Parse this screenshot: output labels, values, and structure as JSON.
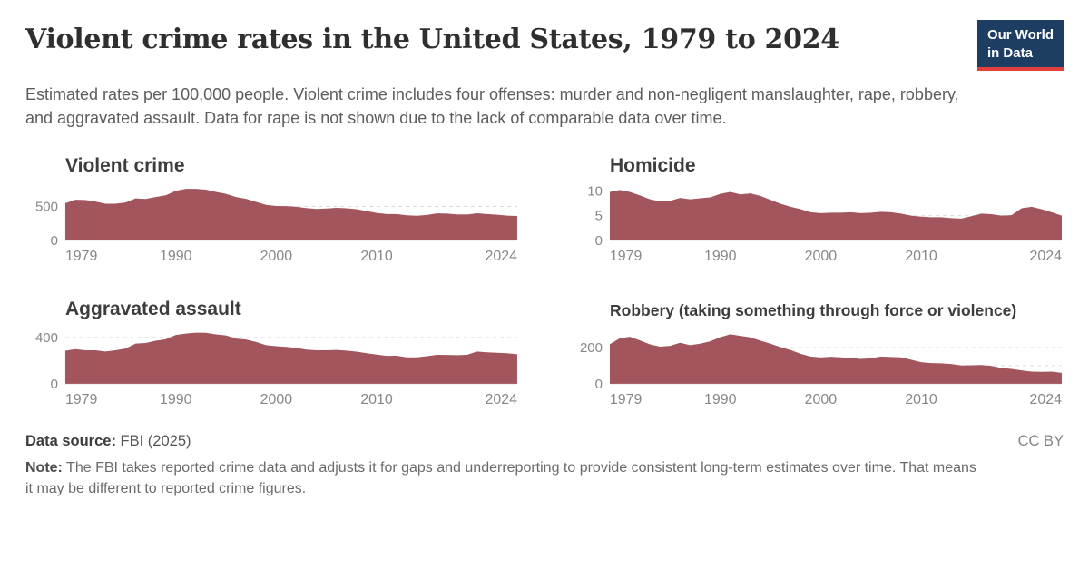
{
  "header": {
    "title": "Violent crime rates in the United States, 1979 to 2024",
    "subtitle": "Estimated rates per 100,000 people. Violent crime includes four offenses: murder and non-negligent manslaughter, rape, robbery, and aggravated assault. Data for rape is not shown due to the lack of comparable data over time.",
    "logo": {
      "line1": "Our World",
      "line2": "in Data",
      "bg": "#1d3d63",
      "accent": "#e0413b"
    }
  },
  "chart_data": {
    "type": "area",
    "fill_color": "#a2555c",
    "grid_color": "#dcdcdc",
    "x": [
      1979,
      1980,
      1981,
      1982,
      1983,
      1984,
      1985,
      1986,
      1987,
      1988,
      1989,
      1990,
      1991,
      1992,
      1993,
      1994,
      1995,
      1996,
      1997,
      1998,
      1999,
      2000,
      2001,
      2002,
      2003,
      2004,
      2005,
      2006,
      2007,
      2008,
      2009,
      2010,
      2011,
      2012,
      2013,
      2014,
      2015,
      2016,
      2017,
      2018,
      2019,
      2020,
      2021,
      2022,
      2023,
      2024
    ],
    "xticks": [
      1979,
      1990,
      2000,
      2010,
      2024
    ],
    "charts": [
      {
        "title": "Violent crime",
        "ymax": 800,
        "yticks": [
          0,
          500
        ],
        "grid": [
          500
        ],
        "values": [
          548,
          597,
          594,
          571,
          538,
          539,
          557,
          618,
          610,
          637,
          663,
          730,
          758,
          758,
          747,
          714,
          685,
          637,
          611,
          567,
          523,
          507,
          504,
          494,
          476,
          463,
          469,
          479,
          472,
          458,
          431,
          404,
          387,
          388,
          370,
          362,
          373,
          397,
          394,
          383,
          380,
          399,
          387,
          377,
          364,
          359
        ]
      },
      {
        "title": "Homicide",
        "ymax": 11,
        "yticks": [
          0,
          5,
          10
        ],
        "grid": [
          5,
          10
        ],
        "values": [
          9.8,
          10.2,
          9.8,
          9.1,
          8.3,
          7.9,
          8.0,
          8.6,
          8.3,
          8.5,
          8.7,
          9.4,
          9.8,
          9.3,
          9.5,
          9.0,
          8.2,
          7.4,
          6.8,
          6.3,
          5.7,
          5.5,
          5.6,
          5.6,
          5.7,
          5.5,
          5.6,
          5.8,
          5.7,
          5.4,
          5.0,
          4.8,
          4.7,
          4.7,
          4.5,
          4.4,
          4.9,
          5.4,
          5.3,
          5.0,
          5.1,
          6.5,
          6.8,
          6.3,
          5.7,
          5.0
        ]
      },
      {
        "title": "Aggravated assault",
        "ymax": 470,
        "yticks": [
          0,
          400
        ],
        "grid": [
          400
        ],
        "values": [
          286,
          299,
          290,
          289,
          279,
          290,
          304,
          347,
          352,
          372,
          385,
          422,
          433,
          442,
          440,
          427,
          418,
          391,
          382,
          361,
          334,
          324,
          319,
          310,
          295,
          289,
          290,
          292,
          287,
          277,
          264,
          252,
          241,
          242,
          229,
          229,
          238,
          250,
          249,
          247,
          250,
          279,
          272,
          268,
          264,
          255
        ]
      },
      {
        "title": "Robbery (taking something through force or violence)",
        "ymax": 300,
        "yticks": [
          0,
          200
        ],
        "grid": [
          100,
          200
        ],
        "values": [
          218,
          251,
          259,
          239,
          217,
          205,
          209,
          226,
          213,
          221,
          234,
          257,
          273,
          264,
          256,
          238,
          221,
          202,
          186,
          165,
          150,
          145,
          149,
          146,
          142,
          137,
          141,
          150,
          148,
          146,
          133,
          119,
          114,
          113,
          109,
          101,
          102,
          103,
          98,
          87,
          82,
          74,
          67,
          66,
          67,
          60
        ]
      }
    ]
  },
  "footer": {
    "source_label": "Data source:",
    "source_value": " FBI (2025)",
    "license": "CC BY",
    "note_label": "Note:",
    "note_text": " The FBI takes reported crime data and adjusts it for gaps and underreporting to provide consistent long-term estimates over time. That means it may be different to reported crime figures."
  }
}
